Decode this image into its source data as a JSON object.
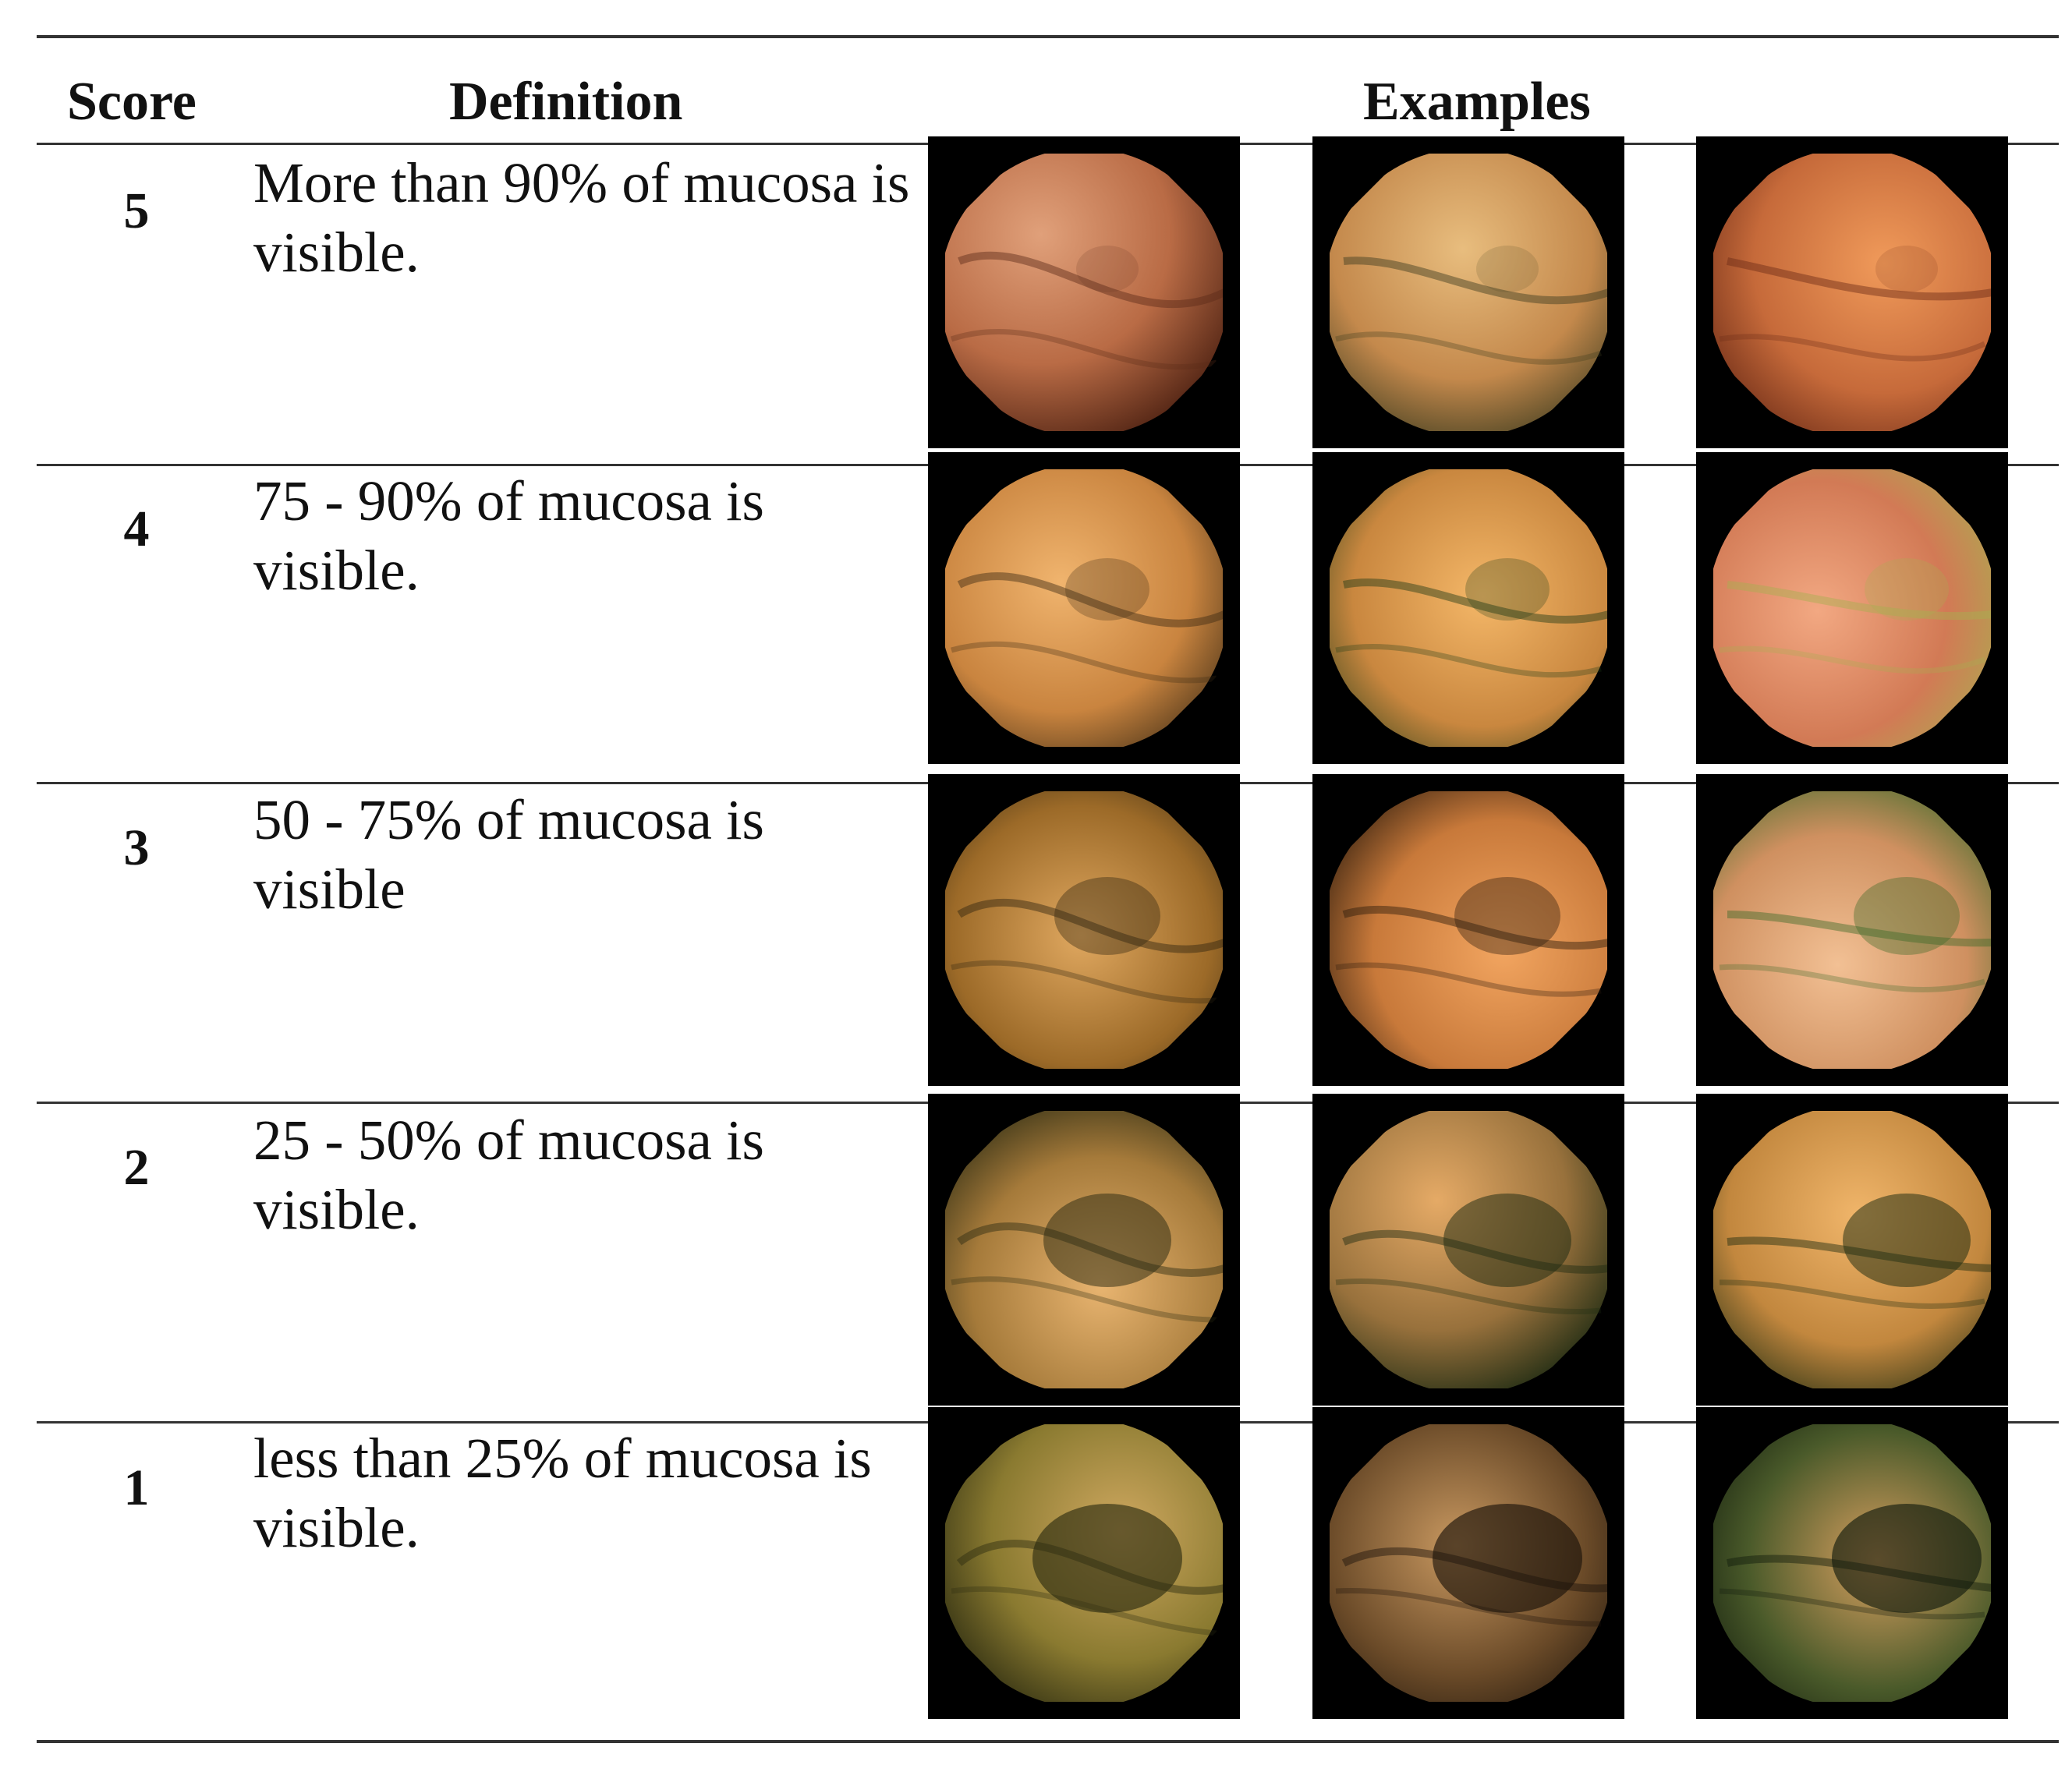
{
  "header": {
    "score": "Score",
    "definition": "Definition",
    "examples": "Examples"
  },
  "rows": [
    {
      "score": "5",
      "definition": "More than 90% of mucosa is visible.",
      "examples": [
        {
          "icon": "endoscopy-image",
          "colors": [
            "#e0a07a",
            "#b96b45",
            "#5a2a18"
          ]
        },
        {
          "icon": "endoscopy-image",
          "colors": [
            "#e8bd7e",
            "#c4894c",
            "#3a3a1e"
          ]
        },
        {
          "icon": "endoscopy-image",
          "colors": [
            "#f09a5a",
            "#c66a3a",
            "#6a2a16"
          ]
        }
      ]
    },
    {
      "score": "4",
      "definition": "75 - 90% of mucosa is visible.",
      "examples": [
        {
          "icon": "endoscopy-image",
          "colors": [
            "#f0b46e",
            "#c9843f",
            "#3b2a14"
          ]
        },
        {
          "icon": "endoscopy-image",
          "colors": [
            "#f4b768",
            "#c9873f",
            "#1f3a16"
          ]
        },
        {
          "icon": "endoscopy-image",
          "colors": [
            "#f2a882",
            "#d27a55",
            "#a7b050"
          ]
        }
      ]
    },
    {
      "score": "3",
      "definition": "50 - 75% of mucosa is visible",
      "examples": [
        {
          "icon": "endoscopy-image",
          "colors": [
            "#e0a860",
            "#9c6a28",
            "#2e2410"
          ]
        },
        {
          "icon": "endoscopy-image",
          "colors": [
            "#f2a560",
            "#c8793a",
            "#2a1a0c"
          ]
        },
        {
          "icon": "endoscopy-image",
          "colors": [
            "#f2c094",
            "#cf9060",
            "#3f6a2a"
          ]
        }
      ]
    },
    {
      "score": "2",
      "definition": "25 - 50% of mucosa is visible.",
      "examples": [
        {
          "icon": "endoscopy-image",
          "colors": [
            "#e8b470",
            "#a57a3a",
            "#2a2a12"
          ]
        },
        {
          "icon": "endoscopy-image",
          "colors": [
            "#e5aa66",
            "#98713c",
            "#1c2a12"
          ]
        },
        {
          "icon": "endoscopy-image",
          "colors": [
            "#f0b56a",
            "#c2873e",
            "#1a2a10"
          ]
        }
      ]
    },
    {
      "score": "1",
      "definition": "less than 25% of mucosa is visible.",
      "examples": [
        {
          "icon": "endoscopy-image",
          "colors": [
            "#cfa860",
            "#8a7a30",
            "#2a2a10"
          ]
        },
        {
          "icon": "endoscopy-image",
          "colors": [
            "#c89860",
            "#6a4a28",
            "#1a120a"
          ]
        },
        {
          "icon": "endoscopy-image",
          "colors": [
            "#d8a060",
            "#4a5a2a",
            "#101a0c"
          ]
        }
      ]
    }
  ]
}
